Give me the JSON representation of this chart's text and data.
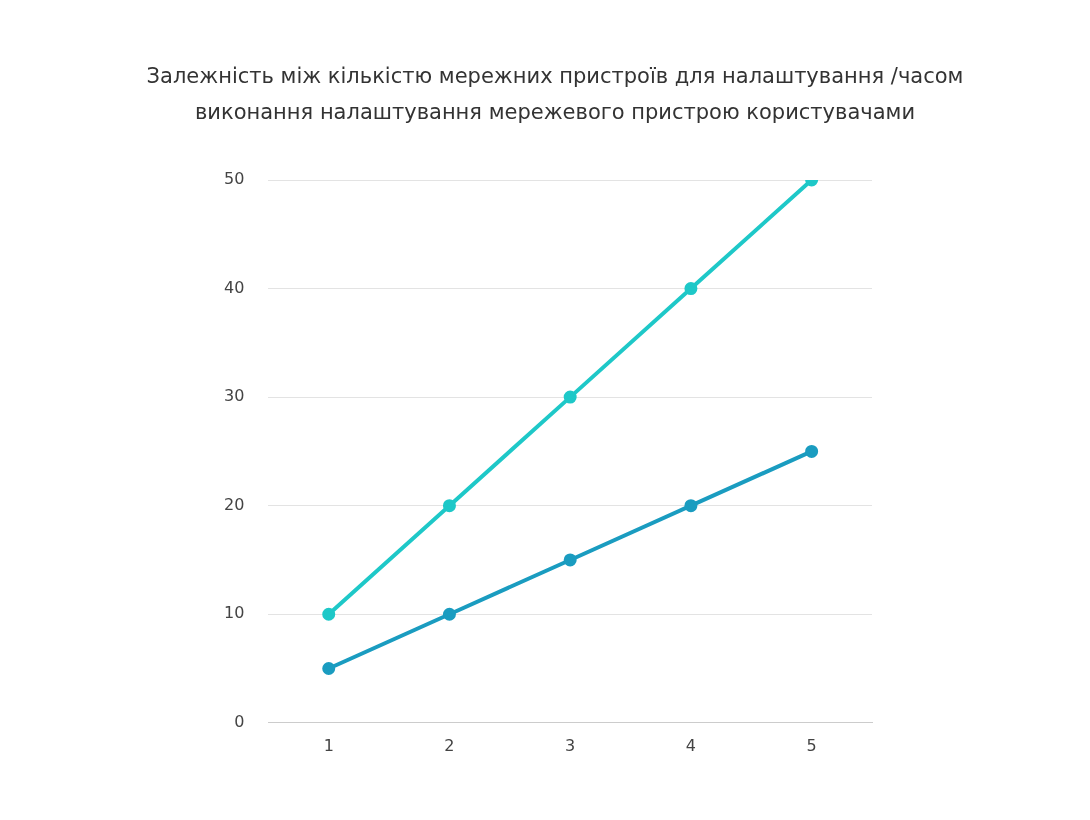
{
  "chart_data": {
    "type": "line",
    "title": "Залежність між кількістю мережних пристроїв для налаштування /часом виконання налаштування мережевого пристрою користувачами",
    "categories": [
      "1",
      "2",
      "3",
      "4",
      "5"
    ],
    "series": [
      {
        "color": "#1ec8c8",
        "values": [
          10,
          20,
          30,
          40,
          50
        ]
      },
      {
        "color": "#1a9cc0",
        "values": [
          5,
          10,
          15,
          20,
          25
        ]
      }
    ],
    "ylim": [
      0,
      50
    ],
    "yticks": [
      0,
      10,
      20,
      30,
      40,
      50
    ],
    "grid": "y",
    "legend": false,
    "marker": "circle",
    "line_style": "solid"
  }
}
